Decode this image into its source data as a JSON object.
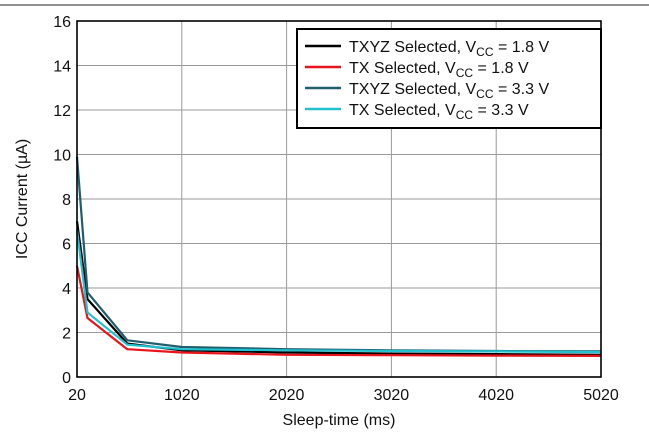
{
  "chart_data": {
    "type": "line",
    "xlabel": "Sleep-time (ms)",
    "ylabel": "ICC Current (µA)",
    "xlim": [
      20,
      5020
    ],
    "ylim": [
      0,
      16
    ],
    "x_ticks": [
      20,
      1020,
      2020,
      3020,
      4020,
      5020
    ],
    "y_ticks": [
      0,
      2,
      4,
      6,
      8,
      10,
      12,
      14,
      16
    ],
    "grid": true,
    "legend_position": "top-right",
    "series": [
      {
        "name": "TXYZ Selected, V_CC = 1.8 V",
        "name_parts": {
          "pre": "TXYZ Selected, V",
          "sub": "CC",
          "post": " = 1.8 V"
        },
        "color": "#000000",
        "x": [
          20,
          120,
          500,
          1020,
          2020,
          3020,
          4020,
          5020
        ],
        "y": [
          7.0,
          3.5,
          1.5,
          1.2,
          1.1,
          1.05,
          1.03,
          1.0
        ]
      },
      {
        "name": "TX Selected, V_CC = 1.8 V",
        "name_parts": {
          "pre": "TX Selected, V",
          "sub": "CC",
          "post": " = 1.8 V"
        },
        "color": "#e8141b",
        "x": [
          20,
          120,
          500,
          1020,
          2020,
          3020,
          4020,
          5020
        ],
        "y": [
          5.0,
          2.65,
          1.25,
          1.1,
          1.0,
          0.98,
          0.96,
          0.95
        ]
      },
      {
        "name": "TXYZ Selected, V_CC = 3.3 V",
        "name_parts": {
          "pre": "TXYZ Selected, V",
          "sub": "CC",
          "post": " = 3.3 V"
        },
        "color": "#1f5e6e",
        "x": [
          20,
          120,
          500,
          1020,
          2020,
          3020,
          4020,
          5020
        ],
        "y": [
          9.9,
          3.8,
          1.65,
          1.35,
          1.25,
          1.2,
          1.17,
          1.15
        ]
      },
      {
        "name": "TX Selected, V_CC = 3.3 V",
        "name_parts": {
          "pre": "TX Selected, V",
          "sub": "CC",
          "post": " = 3.3 V"
        },
        "color": "#22c1cf",
        "x": [
          20,
          120,
          500,
          1020,
          2020,
          3020,
          4020,
          5020
        ],
        "y": [
          6.6,
          2.9,
          1.45,
          1.25,
          1.2,
          1.17,
          1.15,
          1.12
        ]
      }
    ]
  }
}
